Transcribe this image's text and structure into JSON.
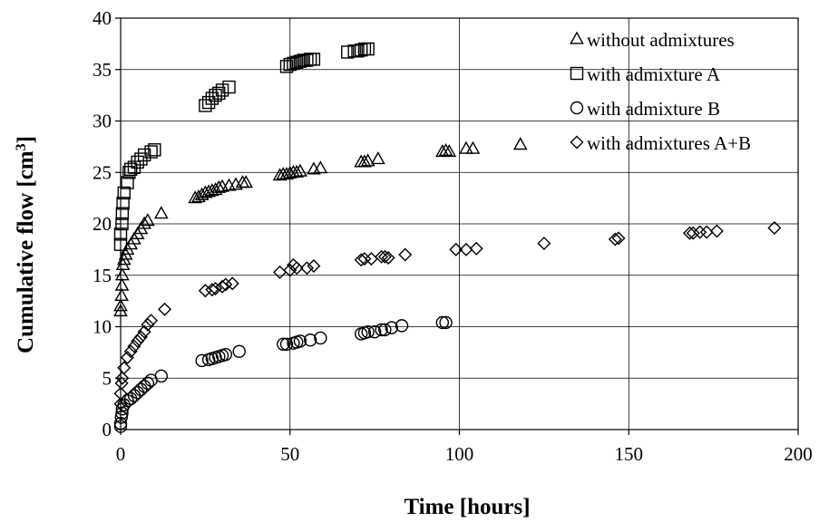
{
  "chart_data": {
    "type": "scatter",
    "xlabel": "Time [hours]",
    "ylabel": "Cumulative flow [cm",
    "ylabel_sup": "3",
    "ylabel_end": "]",
    "xlim": [
      0,
      200
    ],
    "ylim": [
      0,
      40
    ],
    "xticks": [
      0,
      50,
      100,
      150,
      200
    ],
    "yticks": [
      0,
      5,
      10,
      15,
      20,
      25,
      30,
      35,
      40
    ],
    "grid": true,
    "legend_placement": "top-right",
    "series": [
      {
        "name": "without admixtures",
        "marker": "triangle",
        "points": [
          [
            0,
            11.5
          ],
          [
            0,
            12
          ],
          [
            0.3,
            13
          ],
          [
            0.4,
            14
          ],
          [
            0.5,
            15
          ],
          [
            0.7,
            16
          ],
          [
            1,
            16.5
          ],
          [
            1.5,
            17
          ],
          [
            2,
            17.5
          ],
          [
            3,
            18
          ],
          [
            4,
            18.5
          ],
          [
            5,
            19
          ],
          [
            6,
            19.5
          ],
          [
            7,
            20
          ],
          [
            8,
            20.3
          ],
          [
            12,
            21
          ],
          [
            22,
            22.5
          ],
          [
            23,
            22.6
          ],
          [
            24,
            22.8
          ],
          [
            25,
            23
          ],
          [
            26,
            23.1
          ],
          [
            27,
            23.2
          ],
          [
            28,
            23.3
          ],
          [
            29,
            23.5
          ],
          [
            30,
            23.6
          ],
          [
            32,
            23.7
          ],
          [
            34,
            23.8
          ],
          [
            36,
            24
          ],
          [
            37,
            24
          ],
          [
            47,
            24.7
          ],
          [
            48,
            24.8
          ],
          [
            49,
            24.8
          ],
          [
            50,
            24.9
          ],
          [
            51,
            25
          ],
          [
            52,
            25
          ],
          [
            53,
            25.1
          ],
          [
            57,
            25.3
          ],
          [
            59,
            25.4
          ],
          [
            71,
            26
          ],
          [
            72,
            26
          ],
          [
            73,
            26.1
          ],
          [
            76,
            26.3
          ],
          [
            95,
            27
          ],
          [
            96,
            27.1
          ],
          [
            97,
            27
          ],
          [
            102,
            27.3
          ],
          [
            104,
            27.3
          ],
          [
            118,
            27.7
          ]
        ]
      },
      {
        "name": "with admixture A",
        "marker": "square",
        "points": [
          [
            0,
            18
          ],
          [
            0,
            19
          ],
          [
            0.4,
            20
          ],
          [
            0.5,
            21
          ],
          [
            0.7,
            22
          ],
          [
            1,
            23
          ],
          [
            2,
            24
          ],
          [
            2.5,
            25
          ],
          [
            3,
            25.3
          ],
          [
            4,
            25.5
          ],
          [
            5,
            26
          ],
          [
            6,
            26.3
          ],
          [
            7,
            26.7
          ],
          [
            9,
            27
          ],
          [
            10,
            27.2
          ],
          [
            25,
            31.5
          ],
          [
            26,
            31.8
          ],
          [
            27,
            32.2
          ],
          [
            28,
            32.5
          ],
          [
            29,
            32.7
          ],
          [
            30,
            33
          ],
          [
            32,
            33.3
          ],
          [
            49,
            35.3
          ],
          [
            50,
            35.5
          ],
          [
            51,
            35.6
          ],
          [
            52,
            35.7
          ],
          [
            53,
            35.8
          ],
          [
            54,
            35.9
          ],
          [
            55,
            35.9
          ],
          [
            56,
            36
          ],
          [
            57,
            36
          ],
          [
            67,
            36.7
          ],
          [
            69,
            36.8
          ],
          [
            70,
            36.8
          ],
          [
            71,
            36.9
          ],
          [
            72,
            37
          ],
          [
            73,
            37
          ]
        ]
      },
      {
        "name": "with admixture B",
        "marker": "circle",
        "points": [
          [
            0,
            0.3
          ],
          [
            0,
            0.6
          ],
          [
            0.2,
            1.2
          ],
          [
            0.4,
            1.6
          ],
          [
            0.5,
            2
          ],
          [
            1,
            2.4
          ],
          [
            2,
            2.8
          ],
          [
            3,
            3
          ],
          [
            4,
            3.3
          ],
          [
            5,
            3.6
          ],
          [
            6,
            3.9
          ],
          [
            7,
            4.2
          ],
          [
            8,
            4.5
          ],
          [
            9,
            4.8
          ],
          [
            12,
            5.2
          ],
          [
            24,
            6.7
          ],
          [
            26,
            6.8
          ],
          [
            27,
            6.9
          ],
          [
            28,
            7
          ],
          [
            29,
            7.1
          ],
          [
            30,
            7.2
          ],
          [
            31,
            7.3
          ],
          [
            35,
            7.6
          ],
          [
            48,
            8.3
          ],
          [
            49,
            8.3
          ],
          [
            51,
            8.4
          ],
          [
            52,
            8.5
          ],
          [
            53,
            8.6
          ],
          [
            56,
            8.7
          ],
          [
            59,
            8.9
          ],
          [
            71,
            9.3
          ],
          [
            72,
            9.4
          ],
          [
            73,
            9.5
          ],
          [
            75,
            9.5
          ],
          [
            77,
            9.7
          ],
          [
            78,
            9.7
          ],
          [
            80,
            9.9
          ],
          [
            83,
            10.1
          ],
          [
            95,
            10.4
          ],
          [
            96,
            10.4
          ]
        ]
      },
      {
        "name": "with admixtures A+B",
        "marker": "diamond",
        "points": [
          [
            0,
            2.5
          ],
          [
            0,
            3.5
          ],
          [
            0.3,
            4.5
          ],
          [
            0.5,
            5
          ],
          [
            1,
            6
          ],
          [
            2,
            7
          ],
          [
            3,
            7.6
          ],
          [
            4,
            8.1
          ],
          [
            5,
            8.6
          ],
          [
            6,
            9
          ],
          [
            7,
            9.5
          ],
          [
            8,
            10.2
          ],
          [
            9,
            10.6
          ],
          [
            13,
            11.7
          ],
          [
            25,
            13.5
          ],
          [
            27,
            13.6
          ],
          [
            28,
            13.7
          ],
          [
            30,
            13.9
          ],
          [
            31,
            14.1
          ],
          [
            33,
            14.2
          ],
          [
            47,
            15.3
          ],
          [
            50,
            15.5
          ],
          [
            51,
            16
          ],
          [
            52,
            15.7
          ],
          [
            55,
            15.7
          ],
          [
            57,
            15.9
          ],
          [
            71,
            16.5
          ],
          [
            72,
            16.6
          ],
          [
            74,
            16.6
          ],
          [
            77,
            16.8
          ],
          [
            78,
            16.8
          ],
          [
            79,
            16.7
          ],
          [
            84,
            17
          ],
          [
            99,
            17.5
          ],
          [
            102,
            17.5
          ],
          [
            105,
            17.6
          ],
          [
            125,
            18.1
          ],
          [
            146,
            18.5
          ],
          [
            147,
            18.6
          ],
          [
            168,
            19.1
          ],
          [
            169,
            19.1
          ],
          [
            171,
            19.2
          ],
          [
            173,
            19.2
          ],
          [
            176,
            19.3
          ],
          [
            193,
            19.6
          ]
        ]
      }
    ]
  }
}
